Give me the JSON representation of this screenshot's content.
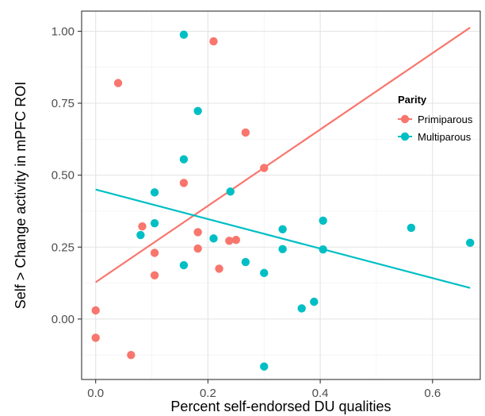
{
  "chart_data": {
    "type": "scatter",
    "xlabel": "Percent self-endorsed DU qualities",
    "ylabel": "Self > Change activity in mPFC ROI",
    "xlim": [
      -0.025,
      0.685
    ],
    "ylim": [
      -0.21,
      1.07
    ],
    "x_ticks": [
      0.0,
      0.2,
      0.4,
      0.6
    ],
    "x_tick_labels": [
      "0.0",
      "0.2",
      "0.4",
      "0.6"
    ],
    "y_ticks": [
      0.0,
      0.25,
      0.5,
      0.75,
      1.0
    ],
    "y_tick_labels": [
      "0.00",
      "0.25",
      "0.50",
      "0.75",
      "1.00"
    ],
    "grid": true,
    "legend": {
      "title": "Parity",
      "position": "right"
    },
    "series": [
      {
        "name": "Primiparous",
        "color": "#F8766D",
        "points": [
          [
            0.0,
            0.03
          ],
          [
            0.0,
            -0.065
          ],
          [
            0.04,
            0.82
          ],
          [
            0.063,
            -0.125
          ],
          [
            0.083,
            0.322
          ],
          [
            0.105,
            0.23
          ],
          [
            0.105,
            0.152
          ],
          [
            0.157,
            0.473
          ],
          [
            0.182,
            0.302
          ],
          [
            0.182,
            0.245
          ],
          [
            0.21,
            0.965
          ],
          [
            0.22,
            0.175
          ],
          [
            0.238,
            0.272
          ],
          [
            0.25,
            0.275
          ],
          [
            0.267,
            0.648
          ],
          [
            0.3,
            0.525
          ]
        ],
        "fit_line": {
          "x": [
            0.0,
            0.667
          ],
          "y": [
            0.128,
            1.013
          ]
        }
      },
      {
        "name": "Multiparous",
        "color": "#00BFC4",
        "points": [
          [
            0.08,
            0.292
          ],
          [
            0.105,
            0.44
          ],
          [
            0.105,
            0.333
          ],
          [
            0.157,
            0.988
          ],
          [
            0.157,
            0.555
          ],
          [
            0.157,
            0.187
          ],
          [
            0.182,
            0.723
          ],
          [
            0.21,
            0.28
          ],
          [
            0.24,
            0.443
          ],
          [
            0.267,
            0.198
          ],
          [
            0.3,
            0.16
          ],
          [
            0.3,
            -0.165
          ],
          [
            0.333,
            0.312
          ],
          [
            0.333,
            0.243
          ],
          [
            0.367,
            0.037
          ],
          [
            0.389,
            0.06
          ],
          [
            0.405,
            0.342
          ],
          [
            0.405,
            0.242
          ],
          [
            0.562,
            0.317
          ],
          [
            0.667,
            0.265
          ]
        ],
        "fit_line": {
          "x": [
            0.0,
            0.667
          ],
          "y": [
            0.45,
            0.108
          ]
        }
      }
    ]
  }
}
